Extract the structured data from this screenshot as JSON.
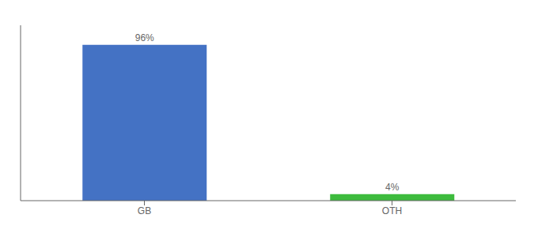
{
  "chart_data": {
    "type": "bar",
    "categories": [
      "GB",
      "OTH"
    ],
    "values": [
      96,
      4
    ],
    "value_labels": [
      "96%",
      "4%"
    ],
    "colors": [
      "#4472c4",
      "#3dbb3d"
    ],
    "ylim": [
      0,
      108
    ],
    "data_labels": true,
    "tick_labels": "x",
    "grid": false
  }
}
